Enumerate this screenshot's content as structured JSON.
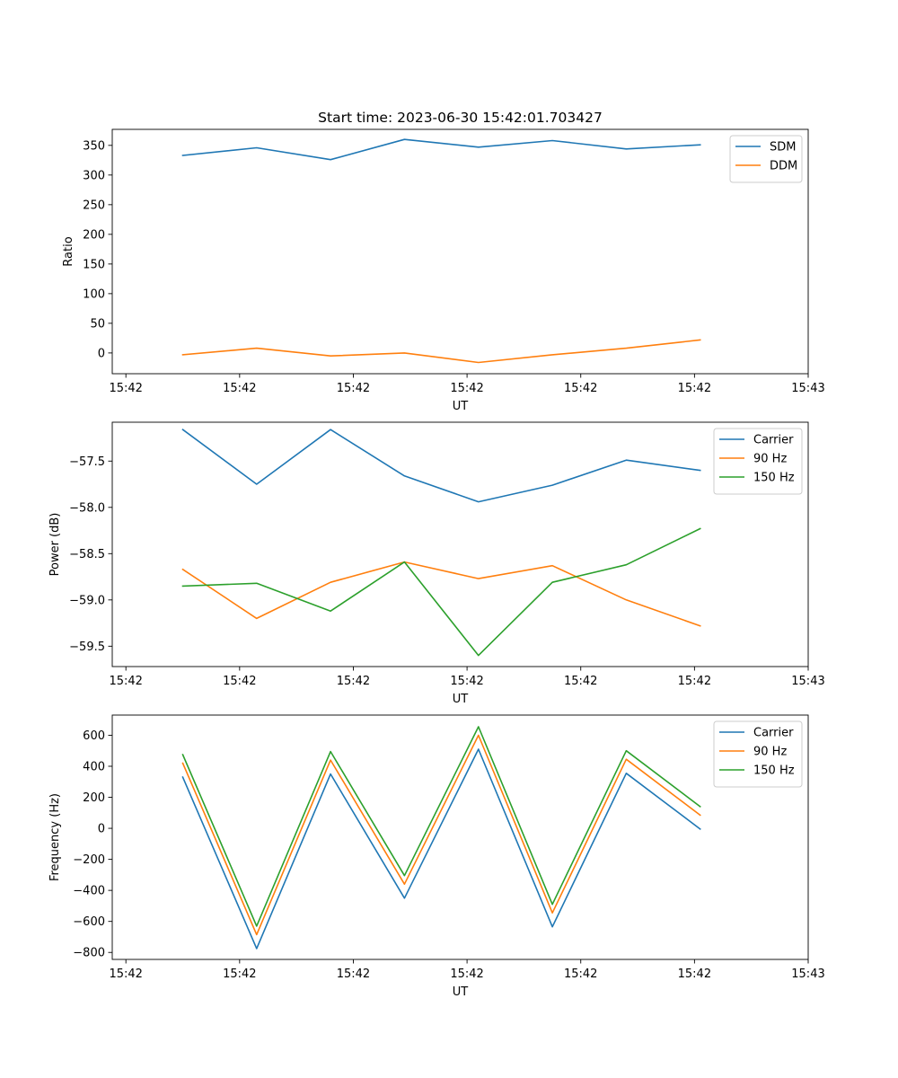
{
  "figure": {
    "title": "Start time: 2023-06-30 15:42:01.703427"
  },
  "chart_data": [
    {
      "type": "line",
      "xlabel": "UT",
      "ylabel": "Ratio",
      "x_tick_labels": [
        "15:42",
        "15:42",
        "15:42",
        "15:42",
        "15:42",
        "15:42",
        "15:43"
      ],
      "x_tick_positions": [
        0,
        1,
        2,
        3,
        4,
        5,
        6
      ],
      "x": [
        0.5,
        1.15,
        1.8,
        2.45,
        3.1,
        3.75,
        4.4,
        5.05
      ],
      "xlim": [
        -0.12,
        6.0
      ],
      "ylim": [
        -35,
        377
      ],
      "y_ticks": [
        0,
        50,
        100,
        150,
        200,
        250,
        300,
        350
      ],
      "y_tick_labels": [
        "0",
        "50",
        "100",
        "150",
        "200",
        "250",
        "300",
        "350"
      ],
      "legend_position": "top-right",
      "grid": false,
      "series": [
        {
          "name": "SDM",
          "color": "#1f77b4",
          "values": [
            333,
            346,
            326,
            360,
            347,
            358,
            344,
            351
          ]
        },
        {
          "name": "DDM",
          "color": "#ff7f0e",
          "values": [
            -3,
            8,
            -5,
            0,
            -16,
            -3,
            8,
            22
          ]
        }
      ]
    },
    {
      "type": "line",
      "xlabel": "UT",
      "ylabel": "Power (dB)",
      "x_tick_labels": [
        "15:42",
        "15:42",
        "15:42",
        "15:42",
        "15:42",
        "15:42",
        "15:43"
      ],
      "x_tick_positions": [
        0,
        1,
        2,
        3,
        4,
        5,
        6
      ],
      "x": [
        0.5,
        1.15,
        1.8,
        2.45,
        3.1,
        3.75,
        4.4,
        5.05
      ],
      "xlim": [
        -0.12,
        6.0
      ],
      "ylim": [
        -59.72,
        -57.08
      ],
      "y_ticks": [
        -59.5,
        -59.0,
        -58.5,
        -58.0,
        -57.5
      ],
      "y_tick_labels": [
        "−59.5",
        "−59.0",
        "−58.5",
        "−58.0",
        "−57.5"
      ],
      "legend_position": "top-right",
      "grid": false,
      "series": [
        {
          "name": "Carrier",
          "color": "#1f77b4",
          "values": [
            -57.16,
            -57.75,
            -57.16,
            -57.66,
            -57.94,
            -57.76,
            -57.49,
            -57.6
          ]
        },
        {
          "name": "90 Hz",
          "color": "#ff7f0e",
          "values": [
            -58.67,
            -59.2,
            -58.81,
            -58.59,
            -58.77,
            -58.63,
            -59.0,
            -59.28
          ]
        },
        {
          "name": "150 Hz",
          "color": "#2ca02c",
          "values": [
            -58.85,
            -58.82,
            -59.12,
            -58.59,
            -59.6,
            -58.81,
            -58.62,
            -58.23
          ]
        }
      ]
    },
    {
      "type": "line",
      "xlabel": "UT",
      "ylabel": "Frequency (Hz)",
      "x_tick_labels": [
        "15:42",
        "15:42",
        "15:42",
        "15:42",
        "15:42",
        "15:42",
        "15:43"
      ],
      "x_tick_positions": [
        0,
        1,
        2,
        3,
        4,
        5,
        6
      ],
      "x": [
        0.5,
        1.15,
        1.8,
        2.45,
        3.1,
        3.75,
        4.4,
        5.05
      ],
      "xlim": [
        -0.12,
        6.0
      ],
      "ylim": [
        -845,
        730
      ],
      "y_ticks": [
        -800,
        -600,
        -400,
        -200,
        0,
        200,
        400,
        600
      ],
      "y_tick_labels": [
        "−800",
        "−600",
        "−400",
        "−200",
        "0",
        "200",
        "400",
        "600"
      ],
      "legend_position": "top-right",
      "grid": false,
      "series": [
        {
          "name": "Carrier",
          "color": "#1f77b4",
          "values": [
            330,
            -775,
            350,
            -450,
            510,
            -635,
            355,
            -5
          ]
        },
        {
          "name": "90 Hz",
          "color": "#ff7f0e",
          "values": [
            420,
            -685,
            440,
            -360,
            600,
            -545,
            445,
            85
          ]
        },
        {
          "name": "150 Hz",
          "color": "#2ca02c",
          "values": [
            475,
            -630,
            495,
            -305,
            655,
            -490,
            500,
            140
          ]
        }
      ]
    }
  ]
}
